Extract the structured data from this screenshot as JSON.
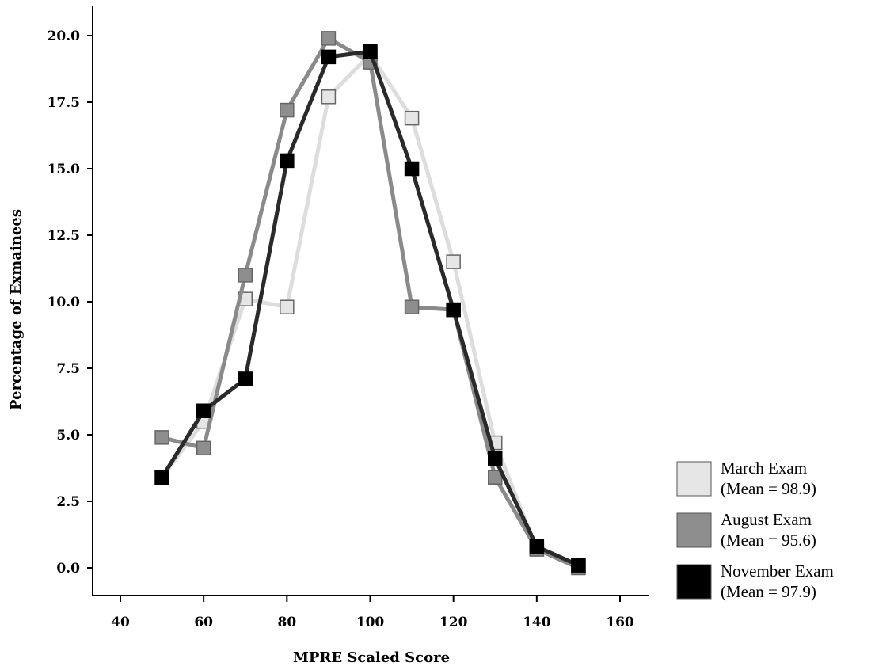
{
  "chart_data": {
    "type": "line",
    "xlabel": "MPRE Scaled Score",
    "ylabel": "Percentage of Exmainees",
    "x_ticks": [
      "40",
      "60",
      "80",
      "100",
      "120",
      "140",
      "160"
    ],
    "y_ticks": [
      "0.0",
      "2.5",
      "5.0",
      "7.5",
      "10.0",
      "12.5",
      "15.0",
      "17.5",
      "20.0"
    ],
    "xlim": [
      40,
      160
    ],
    "ylim": [
      0,
      20
    ],
    "grid": false,
    "legend_position": "bottom-right",
    "x": [
      50,
      60,
      70,
      80,
      90,
      100,
      110,
      120,
      130,
      140,
      150
    ],
    "series": [
      {
        "name": "March Exam",
        "label_line2": "(Mean = 98.9)",
        "color": "#e6e6e6",
        "line_color": "#dddddd",
        "values": [
          3.4,
          5.5,
          10.1,
          9.8,
          17.7,
          19.3,
          16.9,
          11.5,
          4.7,
          0.7,
          0.1
        ]
      },
      {
        "name": "August Exam",
        "label_line2": "(Mean = 95.6)",
        "color": "#8e8e8e",
        "line_color": "#8a8a8a",
        "values": [
          4.9,
          4.5,
          11.0,
          17.2,
          19.9,
          19.0,
          9.8,
          9.7,
          3.4,
          0.7,
          0.0
        ]
      },
      {
        "name": "November Exam",
        "label_line2": "(Mean = 97.9)",
        "color": "#000000",
        "line_color": "#2a2a2a",
        "values": [
          3.4,
          5.9,
          7.1,
          15.3,
          19.2,
          19.4,
          15.0,
          9.7,
          4.1,
          0.8,
          0.1
        ]
      }
    ]
  }
}
